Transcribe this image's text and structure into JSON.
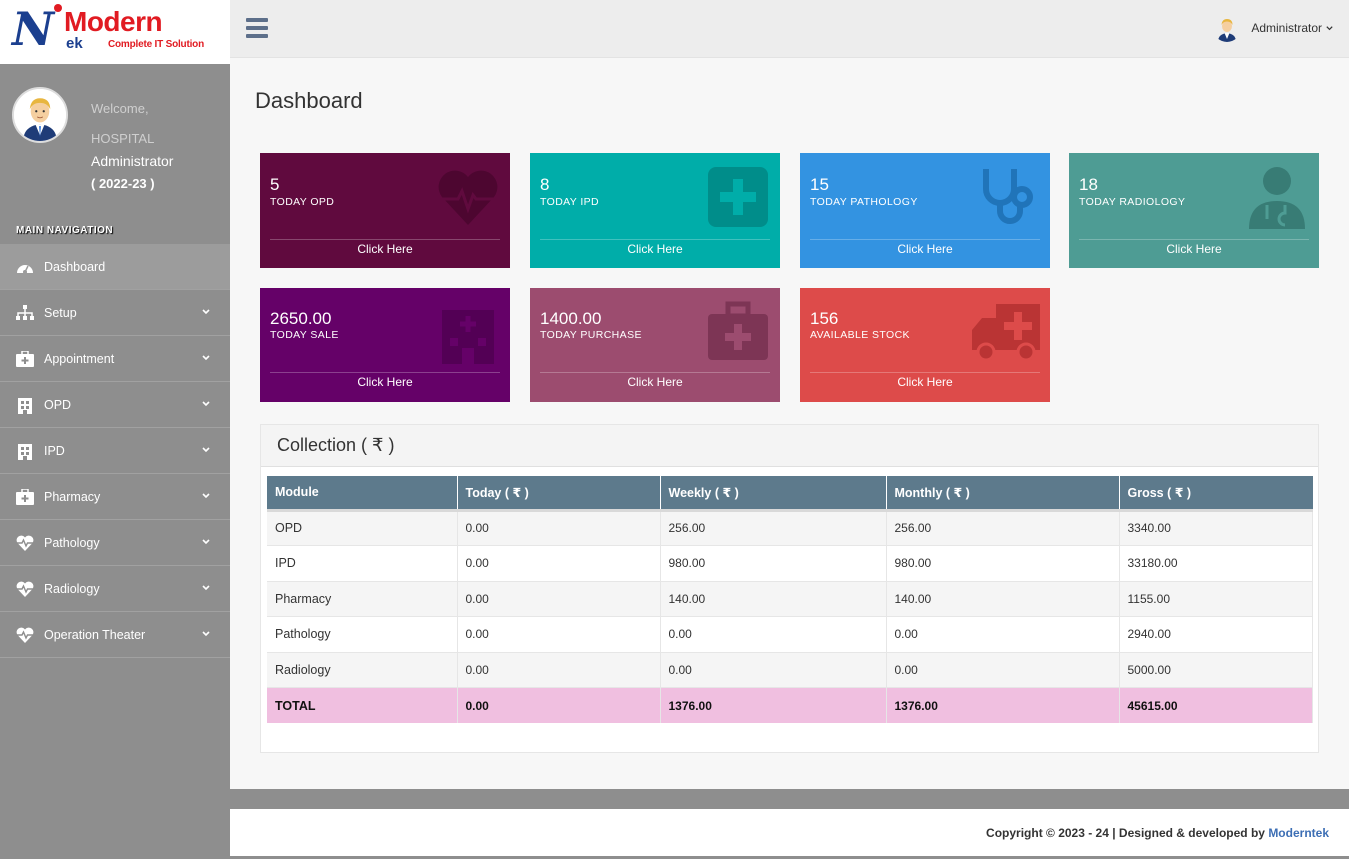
{
  "brand": {
    "logo_letter": "N",
    "logo_word": "Modern",
    "logo_suffix": "ek",
    "logo_tagline": "Complete IT Solution"
  },
  "user_panel": {
    "welcome": "Welcome,",
    "org": "HOSPITAL",
    "name": "Administrator",
    "year": "( 2022-23 )"
  },
  "nav": {
    "header": "MAIN NAVIGATION",
    "items": [
      {
        "label": "Dashboard",
        "icon": "dashboard-icon"
      },
      {
        "label": "Setup",
        "icon": "sitemap-icon"
      },
      {
        "label": "Appointment",
        "icon": "medkit-icon"
      },
      {
        "label": "OPD",
        "icon": "hospital-building-icon"
      },
      {
        "label": "IPD",
        "icon": "hospital-building-icon"
      },
      {
        "label": "Pharmacy",
        "icon": "medkit-icon"
      },
      {
        "label": "Pathology",
        "icon": "heartbeat-icon"
      },
      {
        "label": "Radiology",
        "icon": "heartbeat-icon"
      },
      {
        "label": "Operation Theater",
        "icon": "heartbeat-icon"
      }
    ]
  },
  "topbar": {
    "user_label": "Administrator"
  },
  "page": {
    "title": "Dashboard"
  },
  "boxes": [
    {
      "value": "5",
      "label": "TODAY OPD",
      "link": "Click Here",
      "color": "#600a3e",
      "icon": "heartbeat-icon"
    },
    {
      "value": "8",
      "label": "TODAY IPD",
      "link": "Click Here",
      "color": "#00ada9",
      "icon": "plus-square-icon"
    },
    {
      "value": "15",
      "label": "TODAY PATHOLOGY",
      "link": "Click Here",
      "color": "#3393e1",
      "icon": "stethoscope-icon"
    },
    {
      "value": "18",
      "label": "TODAY RADIOLOGY",
      "link": "Click Here",
      "color": "#4e9c94",
      "icon": "doctor-icon"
    },
    {
      "value": "2650.00",
      "label": "TODAY SALE",
      "link": "Click Here",
      "color": "#650168",
      "icon": "hospital-icon"
    },
    {
      "value": "1400.00",
      "label": "TODAY PURCHASE",
      "link": "Click Here",
      "color": "#9c4c6f",
      "icon": "medkit-icon"
    },
    {
      "value": "156",
      "label": "AVAILABLE STOCK",
      "link": "Click Here",
      "color": "#dd4b4a",
      "icon": "ambulance-icon"
    }
  ],
  "collection": {
    "title": "Collection ( ₹ )",
    "columns": [
      "Module",
      "Today ( ₹ )",
      "Weekly ( ₹ )",
      "Monthly ( ₹ )",
      "Gross ( ₹ )"
    ],
    "rows": [
      [
        "OPD",
        "0.00",
        "256.00",
        "256.00",
        "3340.00"
      ],
      [
        "IPD",
        "0.00",
        "980.00",
        "980.00",
        "33180.00"
      ],
      [
        "Pharmacy",
        "0.00",
        "140.00",
        "140.00",
        "1155.00"
      ],
      [
        "Pathology",
        "0.00",
        "0.00",
        "0.00",
        "2940.00"
      ],
      [
        "Radiology",
        "0.00",
        "0.00",
        "0.00",
        "5000.00"
      ]
    ],
    "total": [
      "TOTAL",
      "0.00",
      "1376.00",
      "1376.00",
      "45615.00"
    ]
  },
  "footer": {
    "text": "Copyright © 2023 - 24 | Designed & developed by ",
    "link": "Moderntek"
  }
}
